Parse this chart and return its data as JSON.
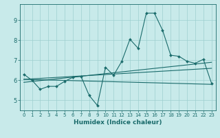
{
  "xlabel": "Humidex (Indice chaleur)",
  "ylabel": "",
  "xlim": [
    -0.5,
    23.5
  ],
  "ylim": [
    4.5,
    9.8
  ],
  "yticks": [
    5,
    6,
    7,
    8,
    9
  ],
  "xticks": [
    0,
    1,
    2,
    3,
    4,
    5,
    6,
    7,
    8,
    9,
    10,
    11,
    12,
    13,
    14,
    15,
    16,
    17,
    18,
    19,
    20,
    21,
    22,
    23
  ],
  "bg_color": "#c8eaea",
  "line_color": "#1a6b6b",
  "grid_color": "#9dcfcf",
  "main_x": [
    0,
    1,
    2,
    3,
    4,
    5,
    6,
    7,
    8,
    9,
    10,
    11,
    12,
    13,
    14,
    15,
    16,
    17,
    18,
    19,
    20,
    21,
    22,
    23
  ],
  "main_y": [
    6.3,
    6.0,
    5.55,
    5.7,
    5.7,
    5.95,
    6.15,
    6.2,
    5.25,
    4.75,
    6.65,
    6.25,
    6.95,
    8.05,
    7.6,
    9.35,
    9.35,
    8.5,
    7.25,
    7.2,
    6.95,
    6.85,
    7.05,
    5.85
  ],
  "trend1_x": [
    0,
    23
  ],
  "trend1_y": [
    6.05,
    6.6
  ],
  "trend2_x": [
    0,
    23
  ],
  "trend2_y": [
    5.9,
    6.9
  ],
  "trend3_x": [
    0,
    23
  ],
  "trend3_y": [
    6.05,
    5.8
  ]
}
